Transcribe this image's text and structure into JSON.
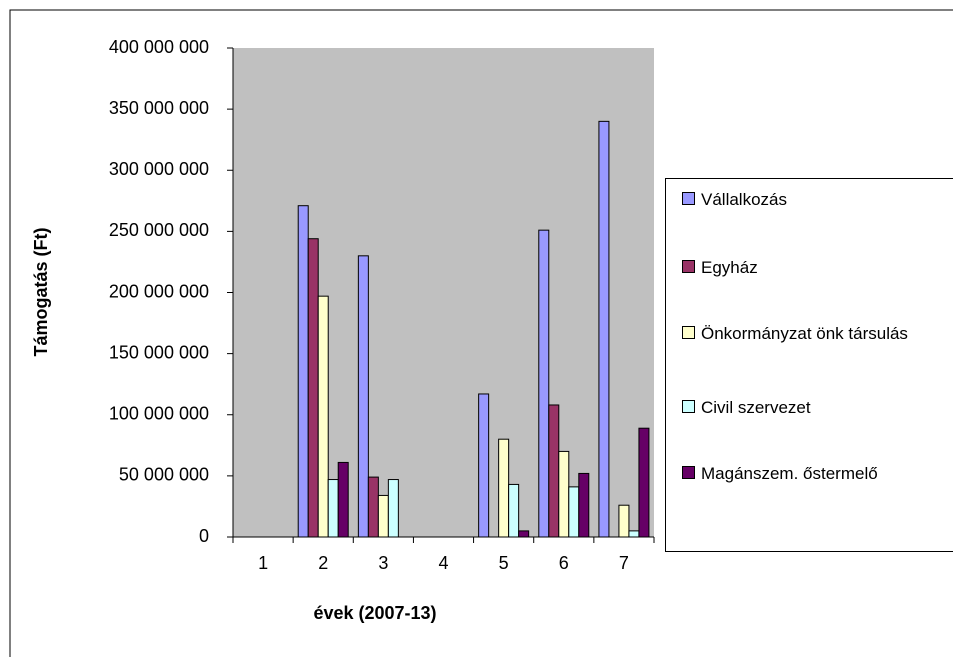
{
  "chart_data": {
    "type": "bar",
    "x_label": "évek (2007-13)",
    "y_label": "Támogatás (Ft)",
    "categories": [
      "1",
      "2",
      "3",
      "4",
      "5",
      "6",
      "7"
    ],
    "series": [
      {
        "name": "Vállalkozás",
        "color": "#9999ff",
        "values": [
          0,
          271000000,
          230000000,
          0,
          117000000,
          251000000,
          340000000
        ]
      },
      {
        "name": "Egyház",
        "color": "#993366",
        "values": [
          0,
          244000000,
          49000000,
          0,
          0,
          108000000,
          0
        ]
      },
      {
        "name": "Önkormányzat önk társulás",
        "color": "#ffffcc",
        "values": [
          0,
          197000000,
          34000000,
          0,
          80000000,
          70000000,
          26000000
        ]
      },
      {
        "name": "Civil szervezet",
        "color": "#ccffff",
        "values": [
          0,
          47000000,
          47000000,
          0,
          43000000,
          41000000,
          5000000
        ]
      },
      {
        "name": "Magánszem. őstermelő",
        "color": "#660066",
        "values": [
          0,
          61000000,
          0,
          0,
          5000000,
          52000000,
          89000000
        ]
      }
    ],
    "ylim": [
      0,
      400000000
    ],
    "yticks": [
      0,
      {
        "value": 50000000,
        "label": "50 000 000"
      },
      {
        "value": 100000000,
        "label": "100 000 000"
      },
      {
        "value": 150000000,
        "label": "150 000 000"
      },
      {
        "value": 200000000,
        "label": "200 000 000"
      },
      {
        "value": 250000000,
        "label": "250 000 000"
      },
      {
        "value": 300000000,
        "label": "300 000 000"
      },
      {
        "value": 350000000,
        "label": "350 000 000"
      },
      {
        "value": 400000000,
        "label": "400 000 000"
      }
    ],
    "plot_background": "#c0c0c0",
    "grid": false
  }
}
